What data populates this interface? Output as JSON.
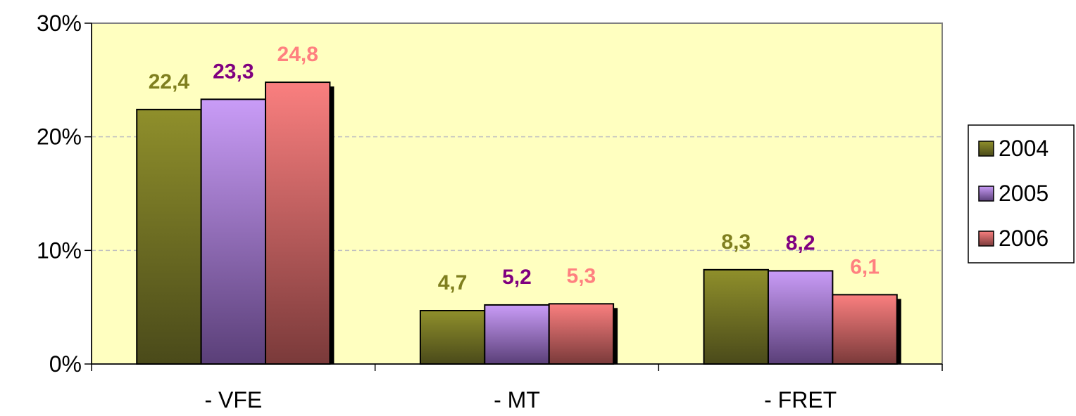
{
  "chart_data": {
    "type": "bar",
    "categories": [
      "- VFE",
      "- MT",
      "- FRET"
    ],
    "series": [
      {
        "name": "2004",
        "values": [
          22.4,
          4.7,
          8.3
        ],
        "labels": [
          "22,4",
          "4,7",
          "8,3"
        ],
        "color": "#8f8f2b",
        "dark": "#4a4a1a",
        "label_color": "#7f7f1f"
      },
      {
        "name": "2005",
        "values": [
          23.3,
          5.2,
          8.2
        ],
        "labels": [
          "23,3",
          "5,2",
          "8,2"
        ],
        "color": "#c99cf7",
        "dark": "#5a3f78",
        "label_color": "#800080"
      },
      {
        "name": "2006",
        "values": [
          24.8,
          5.3,
          6.1
        ],
        "labels": [
          "24,8",
          "5,3",
          "6,1"
        ],
        "color": "#fa7f7f",
        "dark": "#7a3a3a",
        "label_color": "#ff8080"
      }
    ],
    "yticks": [
      "0%",
      "10%",
      "20%",
      "30%"
    ],
    "ytick_values": [
      0,
      10,
      20,
      30
    ],
    "ylim": [
      0,
      30
    ],
    "grid": true,
    "legend": "right",
    "plot_background": "#ffffc0"
  }
}
